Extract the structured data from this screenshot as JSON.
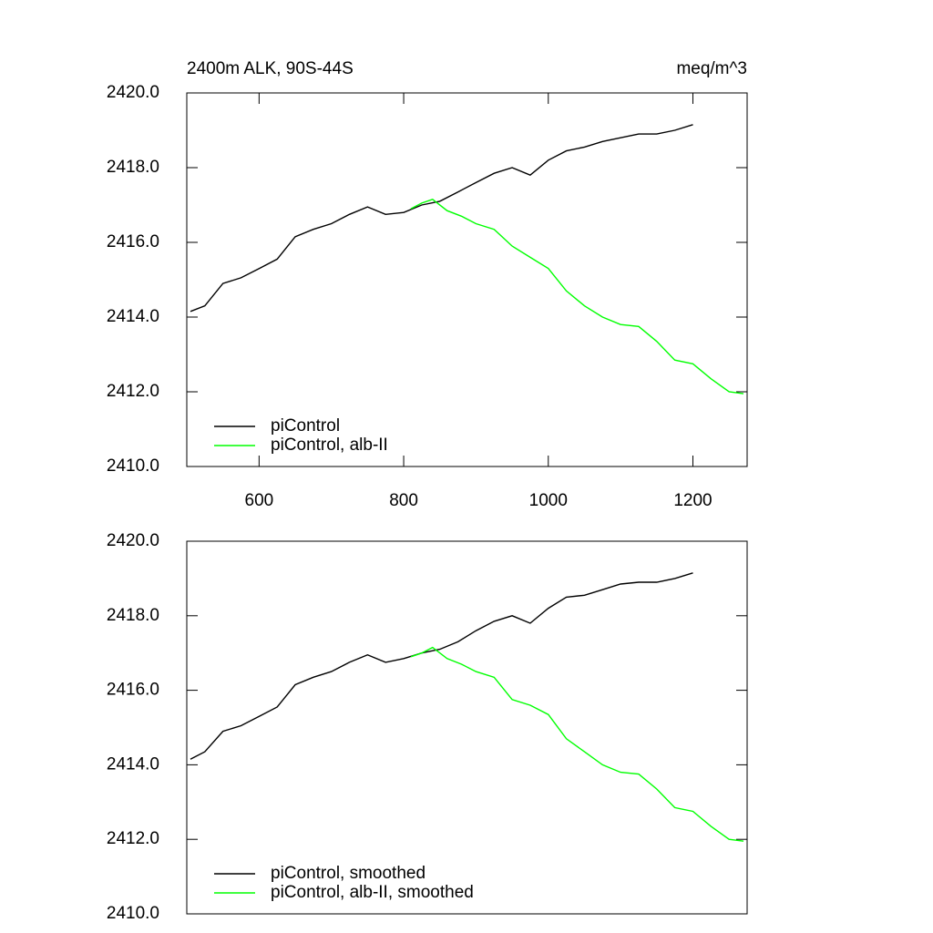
{
  "chart_data": [
    {
      "type": "line",
      "title": "2400m ALK, 90S-44S",
      "subtitle": "meq/m^3",
      "xlim": [
        500,
        1275
      ],
      "xticks": [
        600,
        800,
        1000,
        1200
      ],
      "ylim": [
        2410,
        2420
      ],
      "yticks": [
        {
          "value": 2410,
          "label": "2410.0"
        },
        {
          "value": 2412,
          "label": "2412.0"
        },
        {
          "value": 2414,
          "label": "2414.0"
        },
        {
          "value": 2416,
          "label": "2416.0"
        },
        {
          "value": 2418,
          "label": "2418.0"
        },
        {
          "value": 2420,
          "label": "2420.0"
        }
      ],
      "series": [
        {
          "name": "piControl",
          "color": "#000000",
          "x": [
            505,
            525,
            550,
            575,
            600,
            625,
            650,
            675,
            700,
            725,
            750,
            775,
            800,
            825,
            850,
            875,
            900,
            925,
            950,
            975,
            1000,
            1025,
            1050,
            1075,
            1100,
            1125,
            1150,
            1175,
            1200
          ],
          "values": [
            2414.15,
            2414.3,
            2414.9,
            2415.05,
            2415.3,
            2415.55,
            2416.15,
            2416.35,
            2416.5,
            2416.75,
            2416.95,
            2416.75,
            2416.8,
            2417.0,
            2417.1,
            2417.35,
            2417.6,
            2417.85,
            2418.0,
            2417.8,
            2418.2,
            2418.45,
            2418.55,
            2418.7,
            2418.8,
            2418.9,
            2418.9,
            2419.0,
            2419.15
          ]
        },
        {
          "name": "piControl, alb-II",
          "color": "#00ff00",
          "x": [
            810,
            825,
            840,
            860,
            880,
            900,
            925,
            950,
            975,
            1000,
            1025,
            1050,
            1075,
            1100,
            1125,
            1150,
            1175,
            1200,
            1225,
            1250,
            1270
          ],
          "values": [
            2416.9,
            2417.05,
            2417.15,
            2416.85,
            2416.7,
            2416.5,
            2416.35,
            2415.9,
            2415.6,
            2415.3,
            2414.7,
            2414.3,
            2414.0,
            2413.8,
            2413.75,
            2413.35,
            2412.85,
            2412.75,
            2412.35,
            2412.0,
            2411.95
          ]
        }
      ]
    },
    {
      "type": "line",
      "xlim": [
        500,
        1275
      ],
      "ylim": [
        2410,
        2420
      ],
      "yticks": [
        {
          "value": 2410,
          "label": "2410.0"
        },
        {
          "value": 2412,
          "label": "2412.0"
        },
        {
          "value": 2414,
          "label": "2414.0"
        },
        {
          "value": 2416,
          "label": "2416.0"
        },
        {
          "value": 2418,
          "label": "2418.0"
        },
        {
          "value": 2420,
          "label": "2420.0"
        }
      ],
      "series": [
        {
          "name": "piControl, smoothed",
          "color": "#000000",
          "x": [
            505,
            525,
            550,
            575,
            600,
            625,
            650,
            675,
            700,
            725,
            750,
            775,
            800,
            825,
            850,
            875,
            900,
            925,
            950,
            975,
            1000,
            1025,
            1050,
            1075,
            1100,
            1125,
            1150,
            1175,
            1200
          ],
          "values": [
            2414.15,
            2414.35,
            2414.9,
            2415.05,
            2415.3,
            2415.55,
            2416.15,
            2416.35,
            2416.5,
            2416.75,
            2416.95,
            2416.75,
            2416.85,
            2417.0,
            2417.1,
            2417.3,
            2417.6,
            2417.85,
            2418.0,
            2417.8,
            2418.2,
            2418.5,
            2418.55,
            2418.7,
            2418.85,
            2418.9,
            2418.9,
            2419.0,
            2419.15
          ]
        },
        {
          "name": "piControl, alb-II, smoothed",
          "color": "#00ff00",
          "x": [
            810,
            825,
            840,
            860,
            880,
            900,
            925,
            950,
            975,
            1000,
            1025,
            1050,
            1075,
            1100,
            1125,
            1150,
            1175,
            1200,
            1225,
            1250,
            1270
          ],
          "values": [
            2416.9,
            2417.0,
            2417.15,
            2416.85,
            2416.7,
            2416.5,
            2416.35,
            2415.75,
            2415.6,
            2415.35,
            2414.7,
            2414.35,
            2414.0,
            2413.8,
            2413.75,
            2413.35,
            2412.85,
            2412.75,
            2412.35,
            2412.0,
            2411.95
          ]
        }
      ]
    }
  ]
}
